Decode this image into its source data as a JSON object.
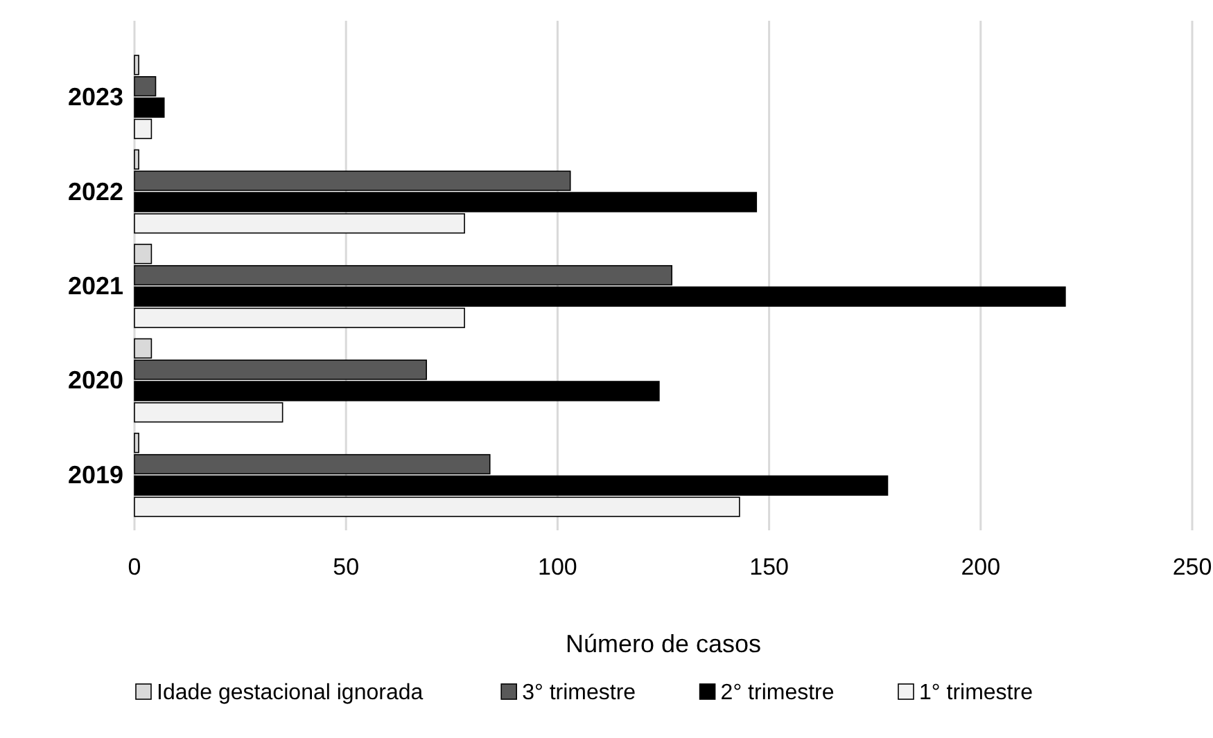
{
  "chart_data": {
    "type": "bar",
    "orientation": "horizontal",
    "xlabel": "Número de casos",
    "categories": [
      "2023",
      "2022",
      "2021",
      "2020",
      "2019"
    ],
    "series": [
      {
        "name": "Idade gestacional ignorada",
        "color": "#d9d9d9",
        "values": [
          1,
          1,
          4,
          4,
          1
        ]
      },
      {
        "name": "3° trimestre",
        "color": "#595959",
        "values": [
          5,
          103,
          127,
          69,
          84
        ]
      },
      {
        "name": "2° trimestre",
        "color": "#000000",
        "values": [
          7,
          147,
          220,
          124,
          178
        ]
      },
      {
        "name": "1° trimestre",
        "color": "#f2f2f2",
        "values": [
          4,
          78,
          78,
          35,
          143
        ]
      }
    ],
    "xlim": [
      0,
      250
    ],
    "xticks": [
      0,
      50,
      100,
      150,
      200,
      250
    ],
    "grid": "x",
    "legend": "bottom"
  }
}
